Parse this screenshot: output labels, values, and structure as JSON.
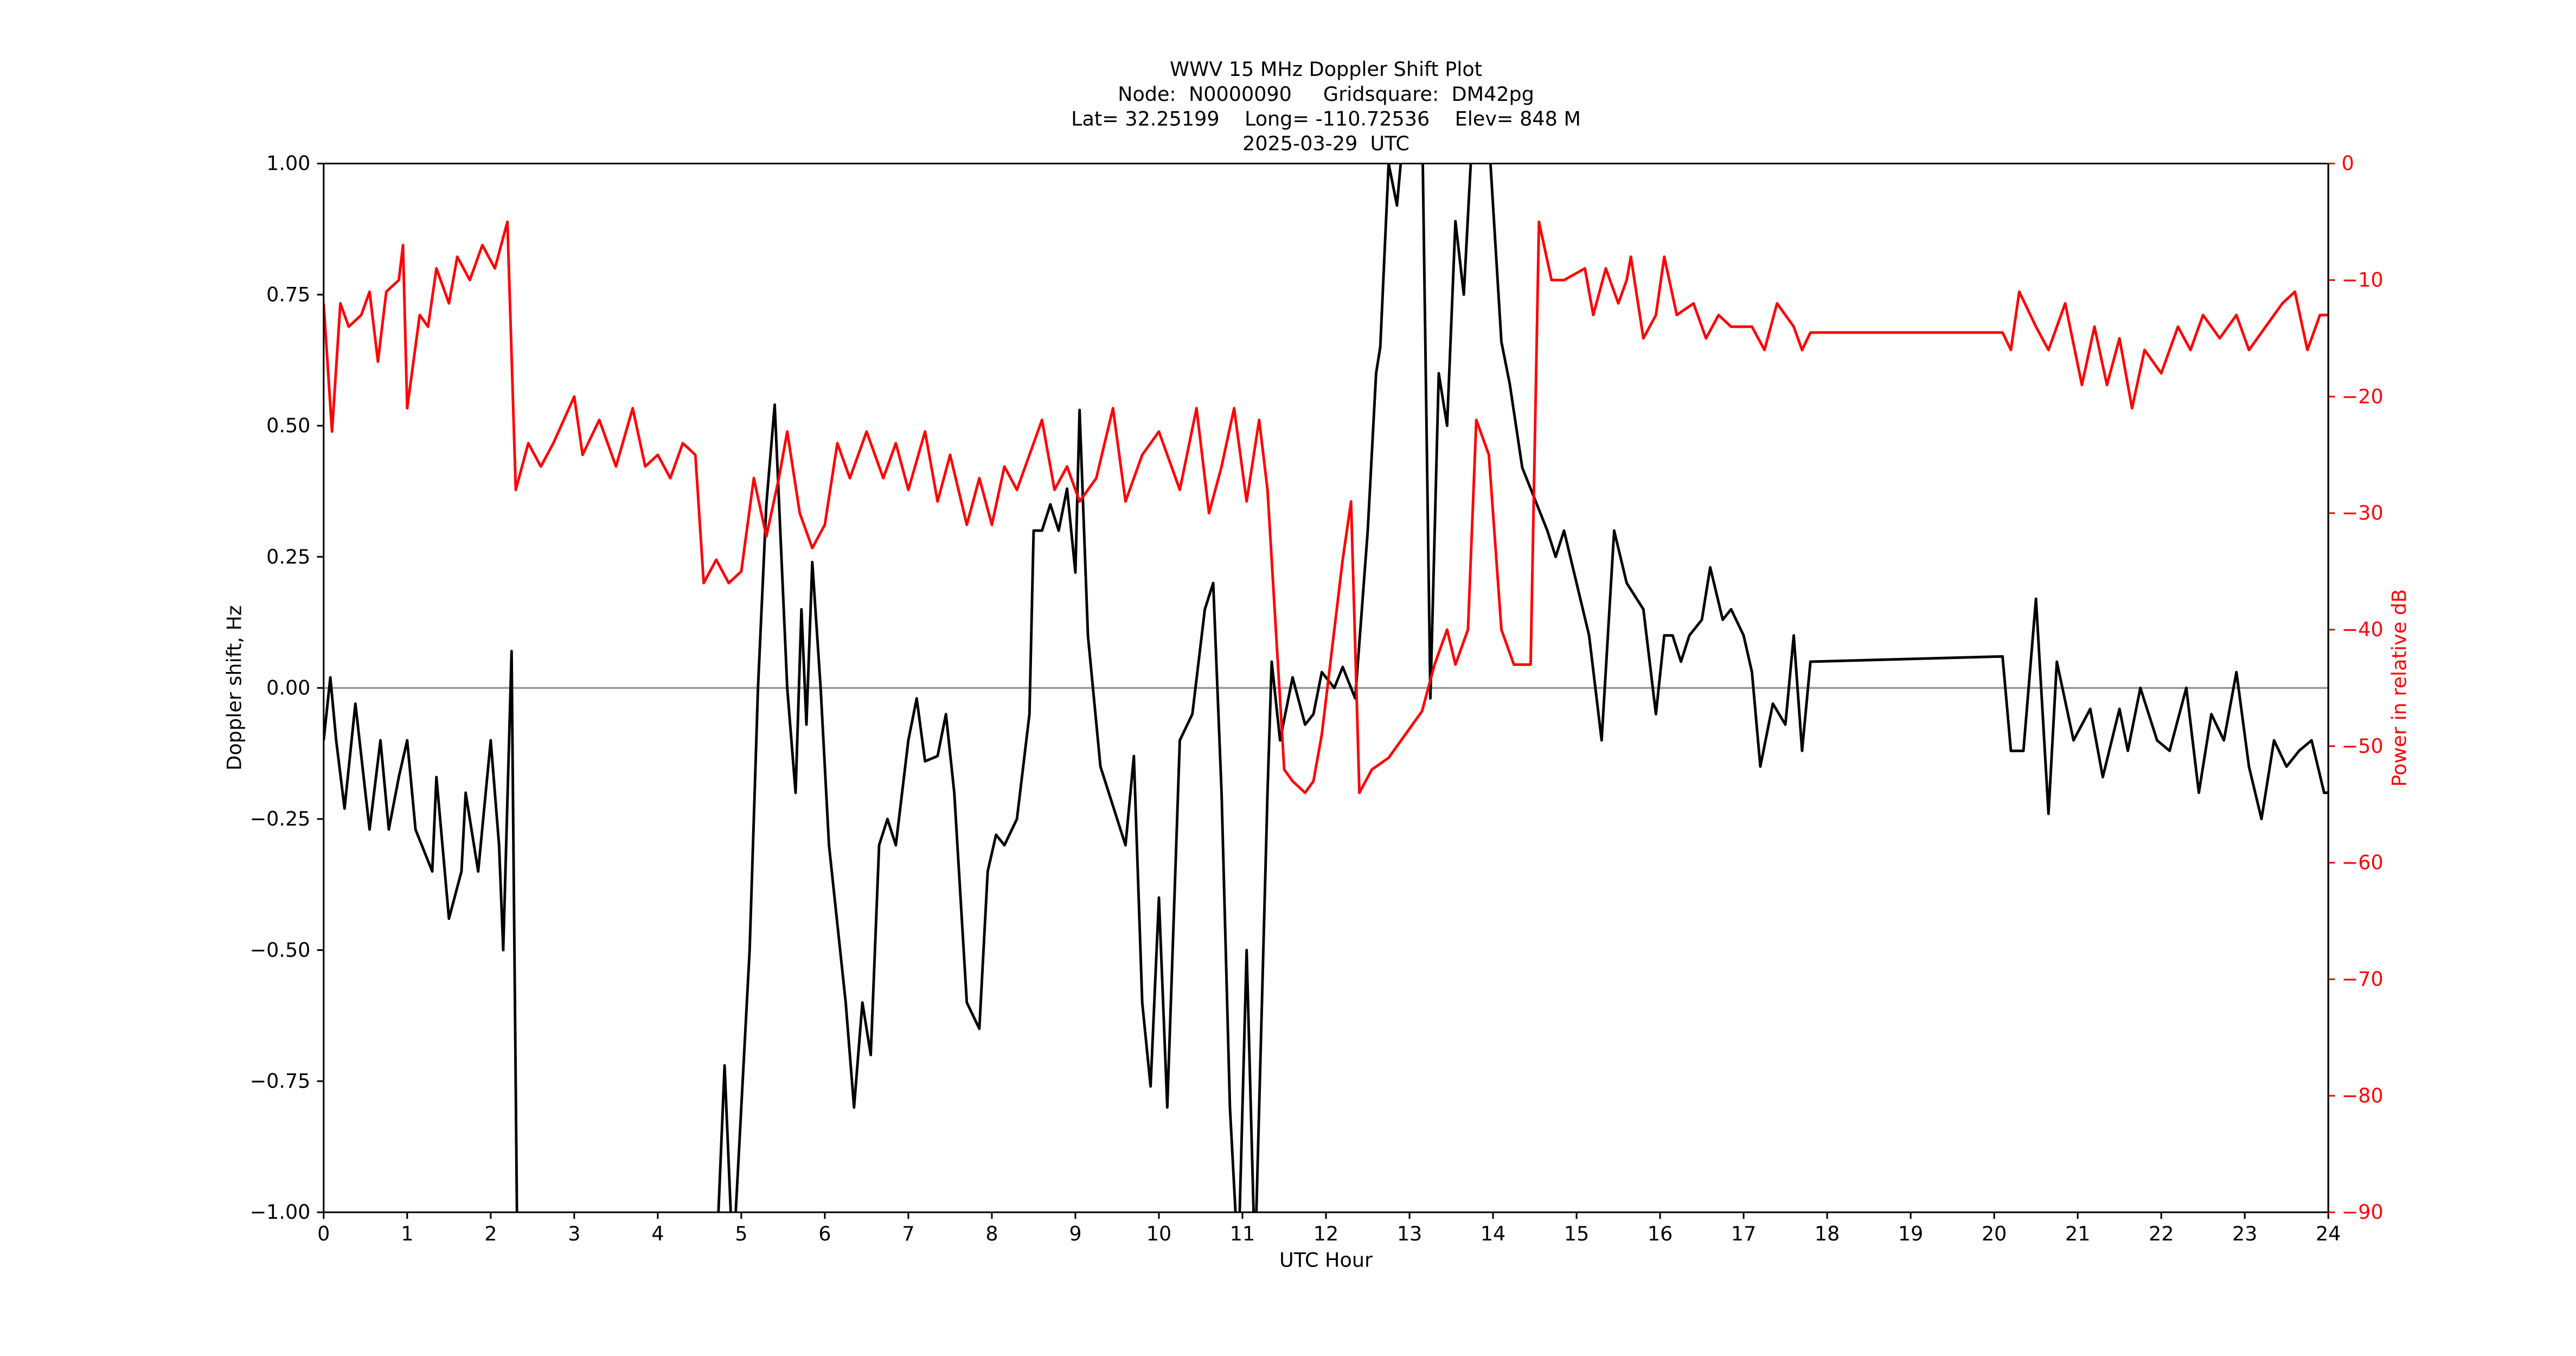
{
  "chart_data": {
    "type": "line",
    "title": "WWV 15 MHz Doppler Shift Plot",
    "subtitle": [
      "Node:  N0000090     Gridsquare:  DM42pg",
      "Lat= 32.25199    Long= -110.72536    Elev= 848 M",
      "2025-03-29  UTC"
    ],
    "xlabel": "UTC Hour",
    "ylabel": "Doppler shift, Hz",
    "y2label": "Power in relative dB",
    "xlim": [
      0,
      24
    ],
    "xticks": [
      0,
      1,
      2,
      3,
      4,
      5,
      6,
      7,
      8,
      9,
      10,
      11,
      12,
      13,
      14,
      15,
      16,
      17,
      18,
      19,
      20,
      21,
      22,
      23,
      24
    ],
    "ylim": [
      -1,
      1
    ],
    "yticks": [
      {
        "value": -1,
        "label": "−1.00"
      },
      {
        "value": -0.75,
        "label": "−0.75"
      },
      {
        "value": -0.5,
        "label": "−0.50"
      },
      {
        "value": -0.25,
        "label": "−0.25"
      },
      {
        "value": 0,
        "label": "0.00"
      },
      {
        "value": 0.25,
        "label": "0.25"
      },
      {
        "value": 0.5,
        "label": "0.50"
      },
      {
        "value": 0.75,
        "label": "0.75"
      },
      {
        "value": 1,
        "label": "1.00"
      }
    ],
    "y2lim": [
      -90,
      0
    ],
    "y2ticks": [
      {
        "value": -90,
        "label": "−90"
      },
      {
        "value": -80,
        "label": "−80"
      },
      {
        "value": -70,
        "label": "−70"
      },
      {
        "value": -60,
        "label": "−60"
      },
      {
        "value": -50,
        "label": "−50"
      },
      {
        "value": -40,
        "label": "−40"
      },
      {
        "value": -30,
        "label": "−30"
      },
      {
        "value": -20,
        "label": "−20"
      },
      {
        "value": -10,
        "label": "−10"
      },
      0
    ],
    "y2color": "#ff0000",
    "hline": 0,
    "hline_color": "#999999",
    "series": [
      {
        "color": "#000000",
        "axis": "y",
        "x": [
          0,
          0.08,
          0.15,
          0.25,
          0.38,
          0.5,
          0.55,
          0.68,
          0.78,
          0.9,
          1.0,
          1.1,
          1.3,
          1.35,
          1.5,
          1.65,
          1.7,
          1.85,
          2.0,
          2.1,
          2.15,
          2.25,
          2.32,
          4.7,
          4.8,
          4.9,
          5.1,
          5.2,
          5.3,
          5.4,
          5.55,
          5.65,
          5.72,
          5.78,
          5.85,
          5.95,
          6.05,
          6.15,
          6.25,
          6.35,
          6.45,
          6.55,
          6.65,
          6.75,
          6.85,
          7.0,
          7.1,
          7.2,
          7.35,
          7.45,
          7.55,
          7.7,
          7.85,
          7.95,
          8.05,
          8.15,
          8.3,
          8.45,
          8.5,
          8.6,
          8.7,
          8.8,
          8.9,
          9.0,
          9.05,
          9.15,
          9.3,
          9.5,
          9.6,
          9.7,
          9.8,
          9.9,
          10.0,
          10.1,
          10.25,
          10.4,
          10.55,
          10.65,
          10.75,
          10.85,
          10.95,
          11.05,
          11.15,
          11.3,
          11.35,
          11.45,
          11.6,
          11.75,
          11.85,
          11.95,
          12.1,
          12.2,
          12.35,
          12.5,
          12.6,
          12.65,
          12.75,
          12.85,
          12.95,
          13.15,
          13.25,
          13.35,
          13.45,
          13.55,
          13.65,
          13.75,
          13.95,
          14.1,
          14.2,
          14.35,
          14.5,
          14.65,
          14.75,
          14.85,
          15.0,
          15.15,
          15.3,
          15.45,
          15.6,
          15.8,
          15.95,
          16.05,
          16.15,
          16.25,
          16.35,
          16.5,
          16.6,
          16.75,
          16.85,
          17.0,
          17.1,
          17.2,
          17.35,
          17.5,
          17.6,
          17.7,
          17.8,
          20.1,
          20.2,
          20.35,
          20.5,
          20.65,
          20.75,
          20.95,
          21.15,
          21.3,
          21.5,
          21.6,
          21.75,
          21.95,
          22.1,
          22.3,
          22.45,
          22.6,
          22.75,
          22.9,
          23.05,
          23.2,
          23.35,
          23.5,
          23.65,
          23.8,
          23.95,
          24.0
        ],
        "values": [
          -0.1,
          0.02,
          -0.1,
          -0.23,
          -0.03,
          -0.2,
          -0.27,
          -0.1,
          -0.27,
          -0.17,
          -0.1,
          -0.27,
          -0.35,
          -0.17,
          -0.44,
          -0.35,
          -0.2,
          -0.35,
          -0.1,
          -0.3,
          -0.5,
          0.07,
          -1.1,
          -1.1,
          -0.72,
          -1.1,
          -0.5,
          0.0,
          0.35,
          0.54,
          0.0,
          -0.2,
          0.15,
          -0.07,
          0.24,
          0.0,
          -0.3,
          -0.45,
          -0.6,
          -0.8,
          -0.6,
          -0.7,
          -0.3,
          -0.25,
          -0.3,
          -0.1,
          -0.02,
          -0.14,
          -0.13,
          -0.05,
          -0.2,
          -0.6,
          -0.65,
          -0.35,
          -0.28,
          -0.3,
          -0.25,
          -0.05,
          0.3,
          0.3,
          0.35,
          0.3,
          0.38,
          0.22,
          0.53,
          0.1,
          -0.15,
          -0.25,
          -0.3,
          -0.13,
          -0.6,
          -0.76,
          -0.4,
          -0.8,
          -0.1,
          -0.05,
          0.15,
          0.2,
          -0.2,
          -0.8,
          -1.1,
          -0.5,
          -1.1,
          -0.2,
          0.05,
          -0.1,
          0.02,
          -0.07,
          -0.05,
          0.03,
          0.0,
          0.04,
          -0.02,
          0.3,
          0.6,
          0.65,
          1.0,
          0.92,
          1.1,
          1.1,
          -0.02,
          0.6,
          0.5,
          0.89,
          0.75,
          1.05,
          1.05,
          0.66,
          0.58,
          0.42,
          0.36,
          0.3,
          0.25,
          0.3,
          0.2,
          0.1,
          -0.1,
          0.3,
          0.2,
          0.15,
          -0.05,
          0.1,
          0.1,
          0.05,
          0.1,
          0.13,
          0.23,
          0.13,
          0.15,
          0.1,
          0.03,
          -0.15,
          -0.03,
          -0.07,
          0.1,
          -0.12,
          0.05,
          0.06,
          -0.12,
          -0.12,
          0.17,
          -0.24,
          0.05,
          -0.1,
          -0.04,
          -0.17,
          -0.04,
          -0.12,
          0.0,
          -0.1,
          -0.12,
          0.0,
          -0.2,
          -0.05,
          -0.1,
          0.03,
          -0.15,
          -0.25,
          -0.1,
          -0.15,
          -0.12,
          -0.1,
          -0.2,
          -0.2
        ]
      },
      {
        "color": "#ff0000",
        "axis": "y2",
        "x": [
          0,
          0.1,
          0.2,
          0.3,
          0.45,
          0.55,
          0.65,
          0.75,
          0.9,
          0.95,
          1.0,
          1.15,
          1.25,
          1.35,
          1.5,
          1.6,
          1.75,
          1.9,
          2.05,
          2.2,
          2.3,
          2.45,
          2.6,
          2.75,
          3.0,
          3.1,
          3.3,
          3.5,
          3.7,
          3.85,
          4.0,
          4.15,
          4.3,
          4.45,
          4.55,
          4.7,
          4.85,
          5.0,
          5.15,
          5.3,
          5.45,
          5.55,
          5.7,
          5.85,
          6.0,
          6.15,
          6.3,
          6.5,
          6.7,
          6.85,
          7.0,
          7.2,
          7.35,
          7.5,
          7.7,
          7.85,
          8.0,
          8.15,
          8.3,
          8.45,
          8.6,
          8.75,
          8.9,
          9.05,
          9.25,
          9.45,
          9.6,
          9.8,
          10.0,
          10.15,
          10.25,
          10.45,
          10.6,
          10.75,
          10.9,
          11.05,
          11.2,
          11.3,
          11.5,
          11.6,
          11.75,
          11.85,
          11.95,
          12.1,
          12.2,
          12.3,
          12.4,
          12.55,
          12.75,
          12.95,
          13.15,
          13.3,
          13.45,
          13.55,
          13.7,
          13.8,
          13.95,
          14.1,
          14.25,
          14.45,
          14.55,
          14.7,
          14.85,
          15.1,
          15.2,
          15.35,
          15.5,
          15.6,
          15.65,
          15.8,
          15.95,
          16.05,
          16.2,
          16.4,
          16.55,
          16.7,
          16.85,
          17.1,
          17.25,
          17.4,
          17.6,
          17.7,
          17.8,
          20.1,
          20.2,
          20.3,
          20.5,
          20.65,
          20.85,
          21.05,
          21.2,
          21.35,
          21.5,
          21.65,
          21.8,
          22.0,
          22.2,
          22.35,
          22.5,
          22.7,
          22.9,
          23.05,
          23.25,
          23.45,
          23.6,
          23.75,
          23.9,
          24.0
        ],
        "values": [
          -12,
          -23,
          -12,
          -14,
          -13,
          -11,
          -17,
          -11,
          -10,
          -7,
          -21,
          -13,
          -14,
          -9,
          -12,
          -8,
          -10,
          -7,
          -9,
          -5,
          -28,
          -24,
          -26,
          -24,
          -20,
          -25,
          -22,
          -26,
          -21,
          -26,
          -25,
          -27,
          -24,
          -25,
          -36,
          -34,
          -36,
          -35,
          -27,
          -32,
          -27,
          -23,
          -30,
          -33,
          -31,
          -24,
          -27,
          -23,
          -27,
          -24,
          -28,
          -23,
          -29,
          -25,
          -31,
          -27,
          -31,
          -26,
          -28,
          -25,
          -22,
          -28,
          -26,
          -29,
          -27,
          -21,
          -29,
          -25,
          -23,
          -26,
          -28,
          -21,
          -30,
          -26,
          -21,
          -29,
          -22,
          -28,
          -52,
          -53,
          -54,
          -53,
          -49,
          -40,
          -34,
          -29,
          -54,
          -52,
          -51,
          -49,
          -47,
          -43,
          -40,
          -43,
          -40,
          -22,
          -25,
          -40,
          -43,
          -43,
          -5,
          -10,
          -10,
          -9,
          -13,
          -9,
          -12,
          -10,
          -8,
          -15,
          -13,
          -8,
          -13,
          -12,
          -15,
          -13,
          -14,
          -14,
          -16,
          -12,
          -14,
          -16,
          -14.5,
          -14.5,
          -16,
          -11,
          -14,
          -16,
          -12,
          -19,
          -14,
          -19,
          -15,
          -21,
          -16,
          -18,
          -14,
          -16,
          -13,
          -15,
          -13,
          -16,
          -14,
          -12,
          -11,
          -16,
          -13,
          -13
        ]
      }
    ]
  }
}
